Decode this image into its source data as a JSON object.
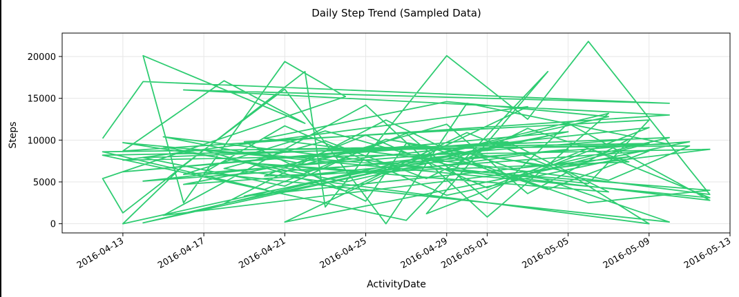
{
  "chart_data": {
    "type": "line",
    "title": "Daily Step Trend (Sampled Data)",
    "xlabel": "ActivityDate",
    "ylabel": "Steps",
    "x_tick_labels": [
      "2016-04-13",
      "2016-04-17",
      "2016-04-21",
      "2016-04-25",
      "2016-04-29",
      "2016-05-01",
      "2016-05-05",
      "2016-05-09",
      "2016-05-13"
    ],
    "y_tick_labels": [
      "0",
      "5000",
      "10000",
      "15000",
      "20000"
    ],
    "y_ticks": [
      0,
      5000,
      10000,
      15000,
      20000
    ],
    "xlim": [
      "2016-04-10",
      "2016-05-13"
    ],
    "ylim": [
      -1100,
      22800
    ],
    "grid": true,
    "line_color": "#2ecc71",
    "series": [
      {
        "points": [
          [
            "2016-04-12",
            10200
          ],
          [
            "2016-04-14",
            17000
          ],
          [
            "2016-05-10",
            14400
          ],
          [
            "2016-04-16",
            16000
          ],
          [
            "2016-05-10",
            13000
          ],
          [
            "2016-04-13",
            8700
          ],
          [
            "2016-04-18",
            17100
          ],
          [
            "2016-04-22",
            12000
          ],
          [
            "2016-04-14",
            20100
          ],
          [
            "2016-04-16",
            2500
          ],
          [
            "2016-04-21",
            19400
          ],
          [
            "2016-04-24",
            15200
          ],
          [
            "2016-04-12",
            5400
          ],
          [
            "2016-04-13",
            1300
          ],
          [
            "2016-04-22",
            18200
          ],
          [
            "2016-04-23",
            2000
          ],
          [
            "2016-04-29",
            20100
          ],
          [
            "2016-05-03",
            12500
          ],
          [
            "2016-05-06",
            21800
          ],
          [
            "2016-05-11",
            6500
          ],
          [
            "2016-05-12",
            3500
          ],
          [
            "2016-04-20",
            10200
          ],
          [
            "2016-04-29",
            14600
          ],
          [
            "2016-05-07",
            12800
          ],
          [
            "2016-04-13",
            0
          ],
          [
            "2016-04-16",
            7000
          ],
          [
            "2016-04-21",
            16100
          ],
          [
            "2016-04-26",
            0
          ],
          [
            "2016-04-30",
            14400
          ],
          [
            "2016-05-10",
            9500
          ],
          [
            "2016-04-12",
            8200
          ],
          [
            "2016-04-27",
            400
          ],
          [
            "2016-05-04",
            18200
          ],
          [
            "2016-04-28",
            1200
          ],
          [
            "2016-05-09",
            11500
          ],
          [
            "2016-04-14",
            5100
          ],
          [
            "2016-05-11",
            9800
          ],
          [
            "2016-04-21",
            200
          ],
          [
            "2016-05-03",
            14000
          ],
          [
            "2016-04-13",
            7600
          ],
          [
            "2016-05-12",
            8900
          ],
          [
            "2016-04-15",
            1000
          ],
          [
            "2016-04-25",
            14200
          ],
          [
            "2016-05-01",
            800
          ],
          [
            "2016-05-07",
            13200
          ],
          [
            "2016-04-14",
            100
          ],
          [
            "2016-04-30",
            8500
          ],
          [
            "2016-05-10",
            200
          ],
          [
            "2016-04-17",
            6100
          ],
          [
            "2016-04-21",
            11700
          ],
          [
            "2016-04-29",
            3400
          ],
          [
            "2016-05-08",
            8000
          ],
          [
            "2016-04-19",
            3300
          ],
          [
            "2016-05-05",
            11000
          ],
          [
            "2016-04-13",
            6200
          ],
          [
            "2016-04-28",
            9300
          ],
          [
            "2016-05-06",
            2500
          ],
          [
            "2016-05-12",
            4000
          ],
          [
            "2016-04-15",
            9200
          ],
          [
            "2016-04-24",
            5000
          ],
          [
            "2016-05-04",
            10500
          ],
          [
            "2016-04-18",
            2400
          ],
          [
            "2016-04-26",
            12400
          ],
          [
            "2016-05-02",
            5300
          ],
          [
            "2016-05-09",
            9600
          ],
          [
            "2016-04-12",
            8600
          ],
          [
            "2016-04-20",
            4100
          ],
          [
            "2016-04-27",
            10800
          ],
          [
            "2016-05-01",
            2900
          ],
          [
            "2016-05-05",
            12000
          ],
          [
            "2016-05-12",
            2800
          ],
          [
            "2016-04-15",
            10400
          ],
          [
            "2016-04-22",
            7100
          ],
          [
            "2016-04-29",
            11900
          ],
          [
            "2016-05-03",
            3600
          ],
          [
            "2016-05-08",
            10100
          ],
          [
            "2016-04-16",
            5900
          ],
          [
            "2016-04-23",
            11100
          ],
          [
            "2016-04-30",
            6400
          ],
          [
            "2016-05-06",
            4800
          ],
          [
            "2016-05-09",
            12400
          ],
          [
            "2016-04-19",
            9800
          ],
          [
            "2016-04-25",
            2700
          ],
          [
            "2016-04-27",
            9600
          ],
          [
            "2016-05-04",
            6900
          ],
          [
            "2016-05-10",
            10300
          ],
          [
            "2016-04-14",
            7900
          ],
          [
            "2016-04-21",
            4500
          ],
          [
            "2016-04-26",
            10100
          ],
          [
            "2016-05-02",
            7700
          ],
          [
            "2016-05-07",
            5200
          ],
          [
            "2016-05-11",
            9300
          ],
          [
            "2016-04-17",
            8800
          ],
          [
            "2016-04-24",
            3900
          ],
          [
            "2016-04-30",
            10900
          ],
          [
            "2016-05-05",
            6000
          ],
          [
            "2016-05-09",
            0
          ],
          [
            "2016-04-18",
            6600
          ],
          [
            "2016-04-23",
            9900
          ],
          [
            "2016-04-28",
            5400
          ],
          [
            "2016-05-03",
            11400
          ],
          [
            "2016-05-08",
            7400
          ],
          [
            "2016-04-20",
            5700
          ],
          [
            "2016-04-25",
            10600
          ],
          [
            "2016-05-01",
            4300
          ],
          [
            "2016-05-06",
            9000
          ],
          [
            "2016-05-12",
            3100
          ],
          [
            "2016-04-13",
            9700
          ],
          [
            "2016-04-22",
            6300
          ],
          [
            "2016-04-29",
            8100
          ],
          [
            "2016-05-04",
            4100
          ],
          [
            "2016-05-09",
            8700
          ],
          [
            "2016-04-16",
            4700
          ],
          [
            "2016-04-24",
            8400
          ],
          [
            "2016-05-02",
            9800
          ],
          [
            "2016-05-07",
            3800
          ],
          [
            "2016-04-19",
            7300
          ],
          [
            "2016-04-26",
            6100
          ],
          [
            "2016-05-05",
            8900
          ],
          [
            "2016-04-21",
            5600
          ]
        ]
      }
    ]
  }
}
